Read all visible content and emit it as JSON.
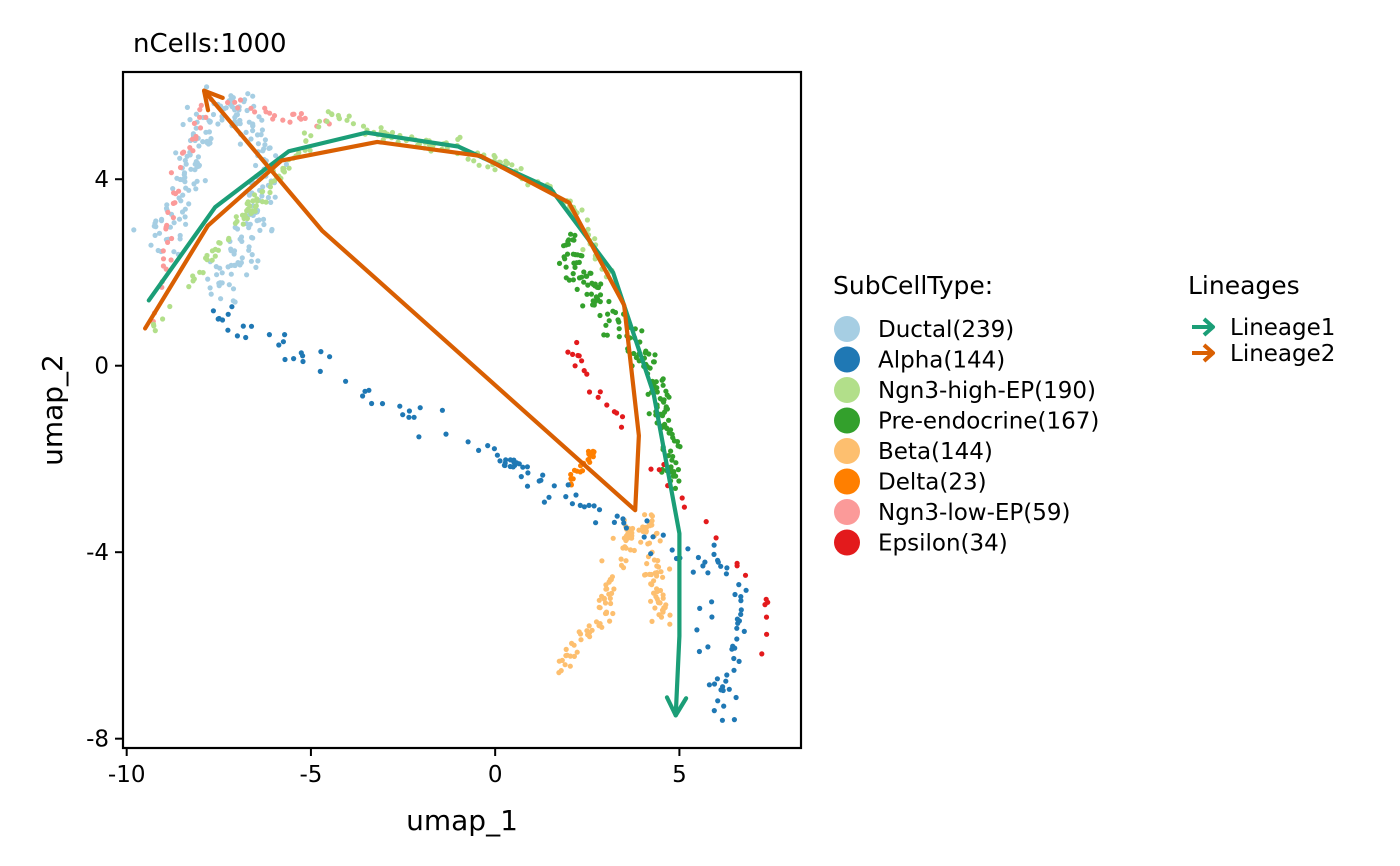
{
  "chart_data": {
    "type": "scatter",
    "title": "nCells:1000",
    "xlabel": "umap_1",
    "ylabel": "umap_2",
    "xlim": [
      -10.1,
      8.3
    ],
    "ylim": [
      -8.2,
      6.3
    ],
    "xticks": [
      -10,
      -5,
      0,
      5
    ],
    "xtick_labels": [
      "-10",
      "-5",
      "0",
      "5"
    ],
    "yticks": [
      -8,
      -4,
      0,
      4
    ],
    "ytick_labels": [
      "-8",
      "-4",
      "0",
      "4"
    ],
    "grid": false,
    "legend": {
      "placement": "right",
      "title": "SubCellType:",
      "entries": [
        {
          "name": "Ductal",
          "label": "Ductal(239)",
          "count": 239,
          "color": "#a6cee3"
        },
        {
          "name": "Alpha",
          "label": "Alpha(144)",
          "count": 144,
          "color": "#1f78b4"
        },
        {
          "name": "Ngn3-high-EP",
          "label": "Ngn3-high-EP(190)",
          "count": 190,
          "color": "#b2df8a"
        },
        {
          "name": "Pre-endocrine",
          "label": "Pre-endocrine(167)",
          "count": 167,
          "color": "#33a02c"
        },
        {
          "name": "Beta",
          "label": "Beta(144)",
          "count": 144,
          "color": "#fdbf6f"
        },
        {
          "name": "Delta",
          "label": "Delta(23)",
          "count": 23,
          "color": "#ff7f00"
        },
        {
          "name": "Ngn3-low-EP",
          "label": "Ngn3-low-EP(59)",
          "count": 59,
          "color": "#fb9a99"
        },
        {
          "name": "Epsilon",
          "label": "Epsilon(34)",
          "count": 34,
          "color": "#e31a1c"
        }
      ]
    },
    "lineage_legend": {
      "title": "Lineages",
      "entries": [
        {
          "label": "Lineage1",
          "color": "#1b9e77"
        },
        {
          "label": "Lineage2",
          "color": "#d95f02"
        }
      ]
    },
    "clusters": [
      {
        "name": "Ductal",
        "color": "#a6cee3",
        "count": 239,
        "path": [
          [
            -9.3,
            2.6
          ],
          [
            -8.6,
            3.4
          ],
          [
            -8.2,
            4.5
          ],
          [
            -7.8,
            5.2
          ],
          [
            -7.1,
            5.6
          ],
          [
            -6.6,
            5.3
          ],
          [
            -6.2,
            4.3
          ],
          [
            -6.5,
            3.2
          ],
          [
            -6.9,
            2.2
          ],
          [
            -7.6,
            1.7
          ]
        ],
        "spread": 0.45
      },
      {
        "name": "Ngn3-low-EP",
        "color": "#fb9a99",
        "count": 59,
        "path": [
          [
            -9.2,
            0.9
          ],
          [
            -8.7,
            3.9
          ],
          [
            -7.9,
            5.6
          ],
          [
            -6.6,
            5.5
          ],
          [
            -5.4,
            5.3
          ],
          [
            -4.5,
            5.2
          ]
        ],
        "spread": 0.18
      },
      {
        "name": "Ngn3-high-EP",
        "color": "#b2df8a",
        "count": 190,
        "path": [
          [
            -9.3,
            0.8
          ],
          [
            -4.6,
            5.3
          ],
          [
            -3.0,
            5.0
          ],
          [
            -1.0,
            4.6
          ],
          [
            0.5,
            4.2
          ],
          [
            1.5,
            3.8
          ],
          [
            2.2,
            3.3
          ],
          [
            2.7,
            2.6
          ],
          [
            3.1,
            1.9
          ]
        ],
        "spread": 0.2
      },
      {
        "name": "Pre-endocrine",
        "color": "#33a02c",
        "count": 167,
        "path": [
          [
            1.9,
            2.7
          ],
          [
            2.7,
            1.5
          ],
          [
            3.4,
            0.8
          ],
          [
            3.9,
            0.4
          ],
          [
            4.3,
            -0.5
          ],
          [
            4.7,
            -1.4
          ],
          [
            4.8,
            -2.4
          ],
          [
            4.9,
            -2.7
          ]
        ],
        "spread": 0.3
      },
      {
        "name": "Beta",
        "color": "#fdbf6f",
        "count": 144,
        "path": [
          [
            1.9,
            -6.4
          ],
          [
            2.3,
            -5.9
          ],
          [
            3.0,
            -5.3
          ],
          [
            3.3,
            -4.3
          ],
          [
            3.6,
            -3.6
          ],
          [
            4.3,
            -3.3
          ],
          [
            4.3,
            -4.6
          ],
          [
            4.7,
            -5.6
          ]
        ],
        "spread": 0.28
      },
      {
        "name": "Delta",
        "color": "#ff7f00",
        "count": 23,
        "path": [
          [
            2.0,
            -2.5
          ],
          [
            2.2,
            -2.3
          ],
          [
            2.7,
            -1.8
          ]
        ],
        "spread": 0.12
      },
      {
        "name": "Alpha",
        "color": "#1f78b4",
        "count": 144,
        "path": [
          [
            5.8,
            -3.7
          ],
          [
            6.0,
            -4.6
          ],
          [
            5.7,
            -5.5
          ],
          [
            5.8,
            -6.3
          ],
          [
            6.1,
            -7.0
          ],
          [
            6.3,
            -7.6
          ],
          [
            6.7,
            -4.7
          ],
          [
            -7.7,
            1.2
          ]
        ],
        "spread": 0.32
      },
      {
        "name": "Epsilon",
        "color": "#e31a1c",
        "count": 34,
        "path": [
          [
            1.8,
            0.5
          ],
          [
            7.2,
            -4.9
          ],
          [
            7.4,
            -5.6
          ],
          [
            7.2,
            -6.3
          ],
          [
            7.1,
            -6.2
          ]
        ],
        "spread": 0.2
      }
    ],
    "lineages": [
      {
        "name": "Lineage1",
        "color": "#1b9e77",
        "points": [
          [
            -9.4,
            1.4
          ],
          [
            -7.6,
            3.4
          ],
          [
            -5.6,
            4.6
          ],
          [
            -3.5,
            5.0
          ],
          [
            -1.0,
            4.7
          ],
          [
            1.5,
            3.8
          ],
          [
            3.2,
            2.0
          ],
          [
            4.3,
            -0.6
          ],
          [
            5.0,
            -3.6
          ],
          [
            5.0,
            -5.8
          ],
          [
            4.9,
            -7.5
          ]
        ]
      },
      {
        "name": "Lineage2",
        "color": "#d95f02",
        "points": [
          [
            -9.5,
            0.8
          ],
          [
            -7.8,
            3.0
          ],
          [
            -5.8,
            4.4
          ],
          [
            -3.2,
            4.8
          ],
          [
            -0.4,
            4.5
          ],
          [
            2.0,
            3.5
          ],
          [
            3.5,
            1.3
          ],
          [
            3.9,
            -1.5
          ],
          [
            3.8,
            -3.1
          ],
          [
            -4.7,
            2.9
          ],
          [
            -7.9,
            5.9
          ]
        ]
      }
    ]
  }
}
